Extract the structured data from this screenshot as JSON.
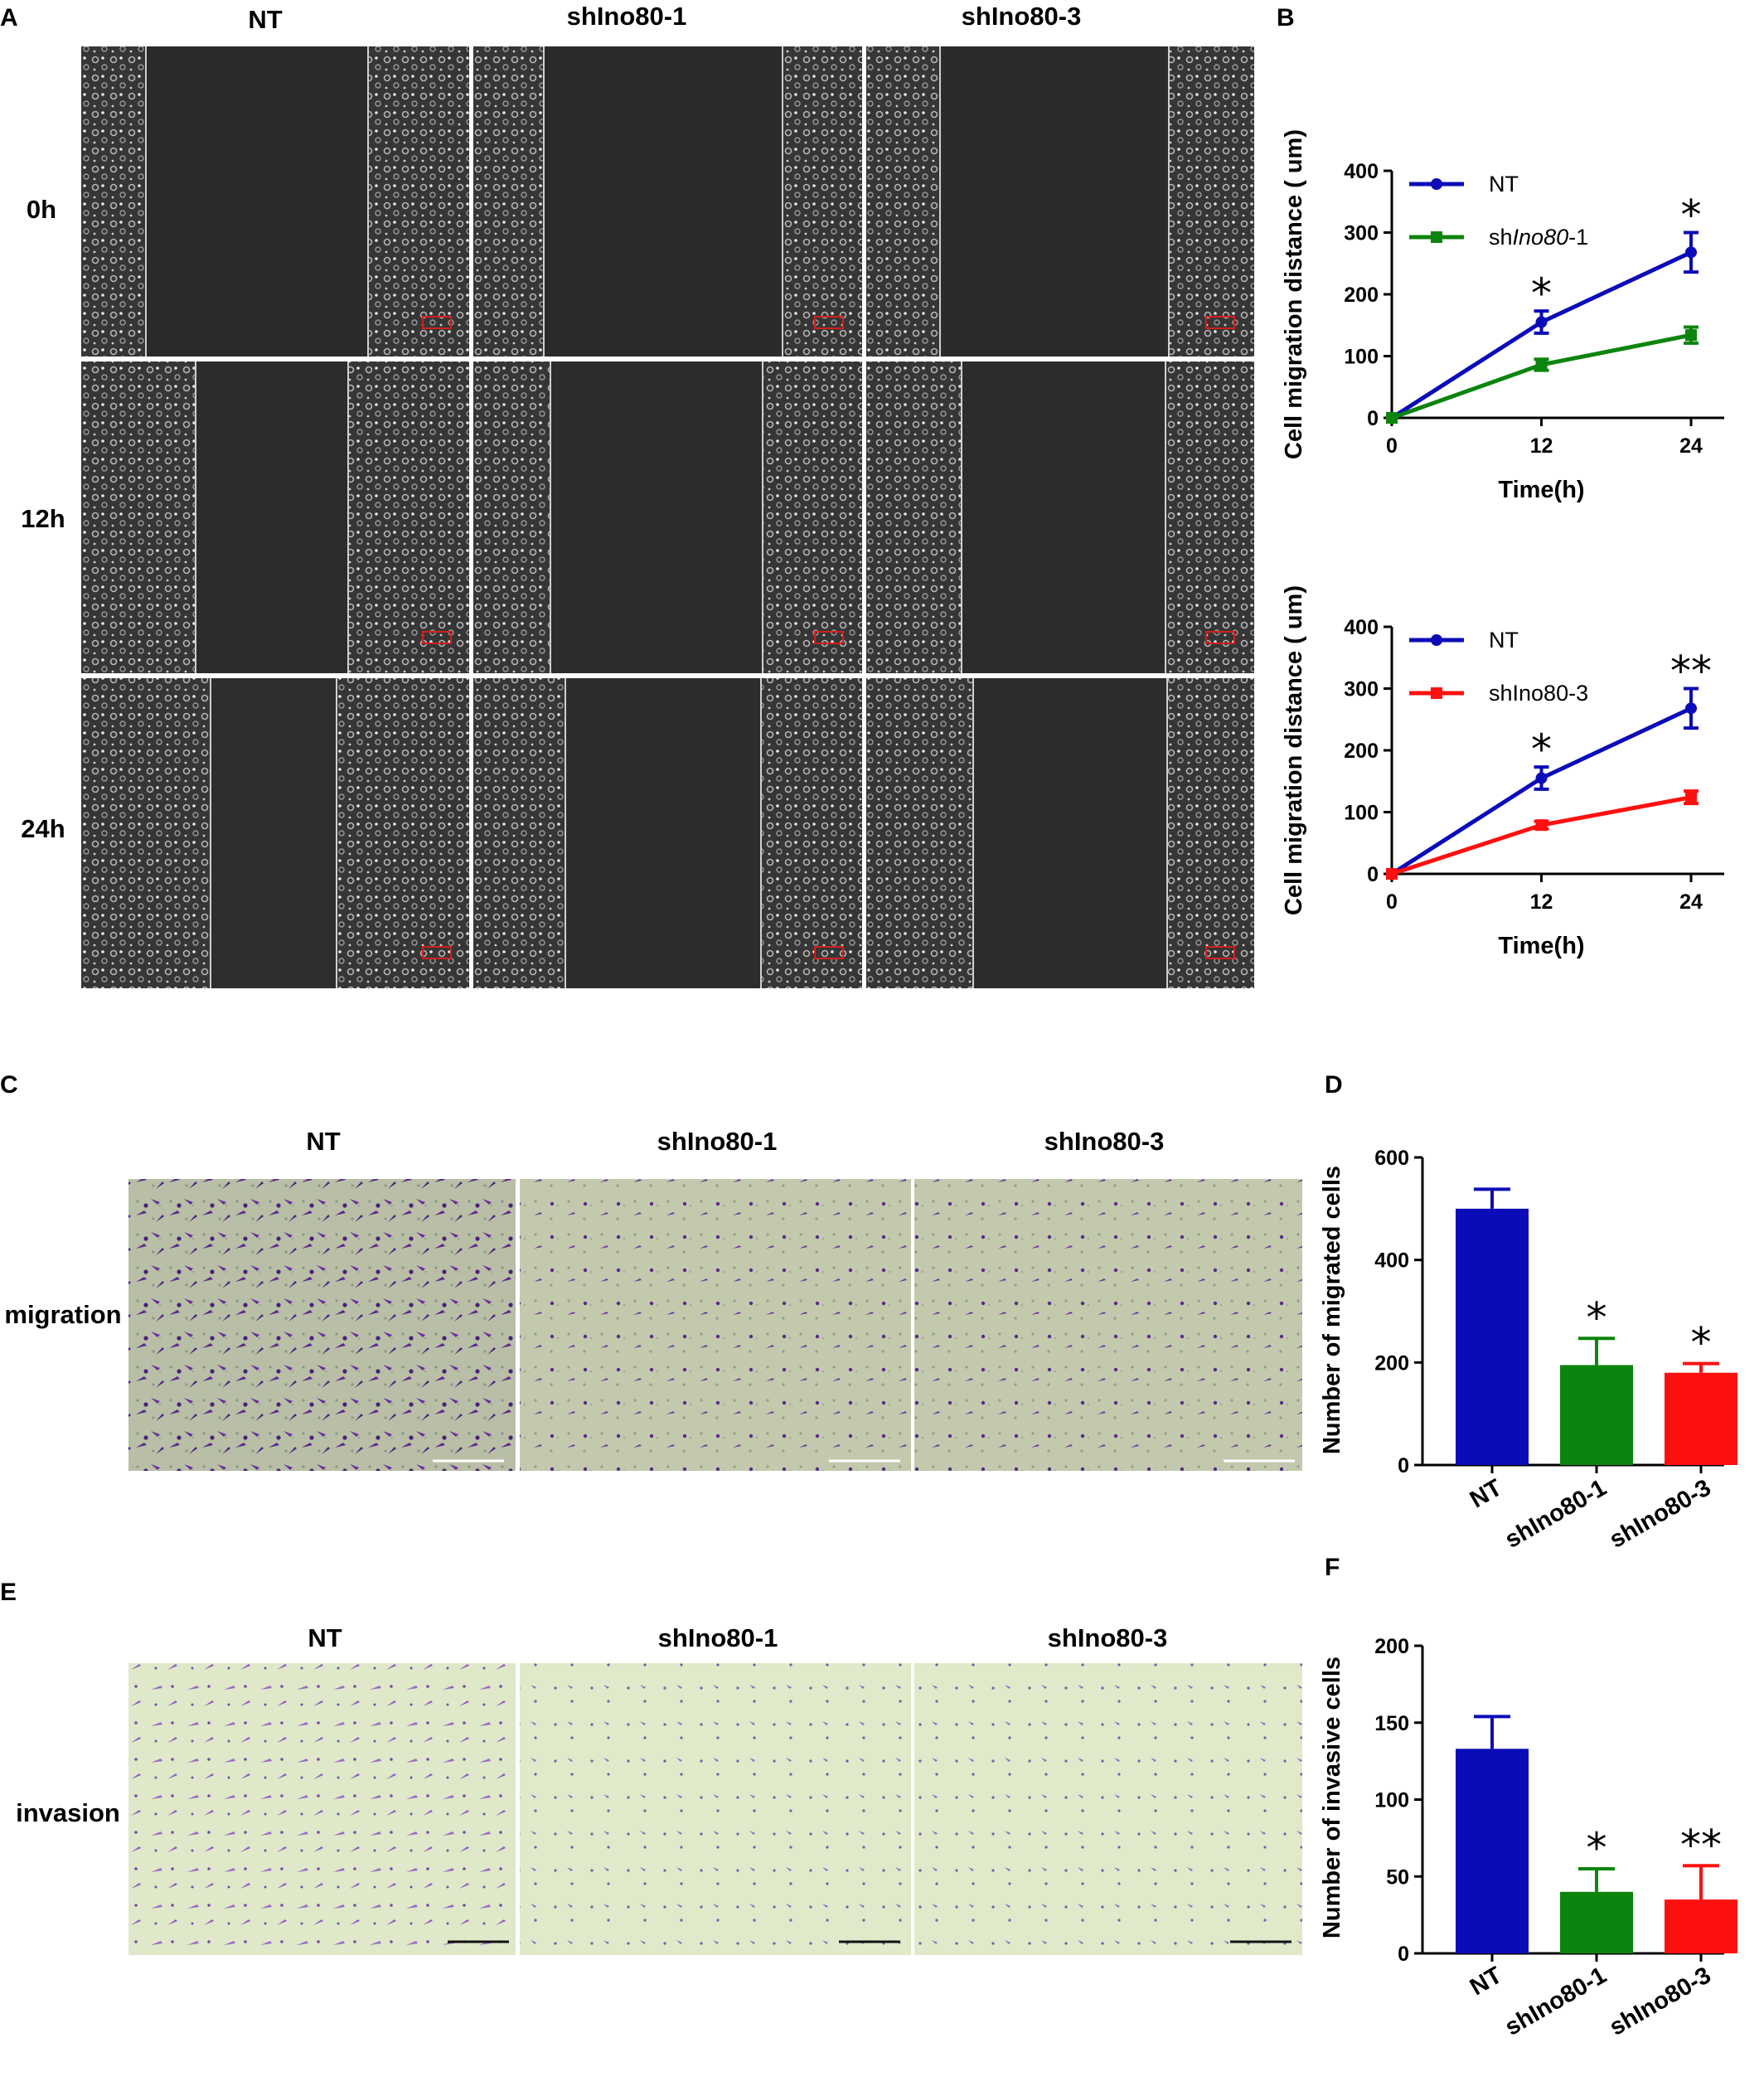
{
  "panels": {
    "a": {
      "letter": "A",
      "cols": [
        "NT",
        "shIno80-1",
        "shIno80-3"
      ],
      "rows": [
        "0h",
        "12h",
        "24h"
      ],
      "scale": "100 um"
    },
    "b": {
      "letter": "B"
    },
    "c": {
      "letter": "C",
      "cols": [
        "NT",
        "shIno80-1",
        "shIno80-3"
      ],
      "row": "migration"
    },
    "d": {
      "letter": "D"
    },
    "e": {
      "letter": "E",
      "cols": [
        "NT",
        "shIno80-1",
        "shIno80-3"
      ],
      "row": "invasion"
    },
    "f": {
      "letter": "F"
    }
  },
  "colors": {
    "nt": "#0b0bb8",
    "sh1": "#0d840d",
    "sh3": "#ff1010"
  },
  "chart_data": [
    {
      "id": "B1",
      "type": "line",
      "x": [
        0,
        12,
        24
      ],
      "xlabel": "Time(h)",
      "ylabel": "Cell migration distance ( um)",
      "ylim": [
        0,
        400
      ],
      "yticks": [
        0,
        100,
        200,
        300,
        400
      ],
      "xticks": [
        0,
        12,
        24
      ],
      "legend": "top-left",
      "series": [
        {
          "name": "NT",
          "values": [
            0,
            155,
            268
          ],
          "errors": [
            0,
            18,
            32
          ],
          "color": "#0b0bb8"
        },
        {
          "name": "shIno80-1",
          "values": [
            0,
            86,
            134
          ],
          "errors": [
            0,
            9,
            13
          ],
          "color": "#0d840d"
        }
      ],
      "annotations": [
        {
          "x": 12,
          "text": "*"
        },
        {
          "x": 24,
          "text": "*"
        }
      ]
    },
    {
      "id": "B2",
      "type": "line",
      "x": [
        0,
        12,
        24
      ],
      "xlabel": "Time(h)",
      "ylabel": "Cell migration distance ( um)",
      "ylim": [
        0,
        400
      ],
      "yticks": [
        0,
        100,
        200,
        300,
        400
      ],
      "xticks": [
        0,
        12,
        24
      ],
      "legend": "top-left",
      "series": [
        {
          "name": "NT",
          "values": [
            0,
            155,
            268
          ],
          "errors": [
            0,
            18,
            32
          ],
          "color": "#0b0bb8"
        },
        {
          "name": "shIno80-3",
          "values": [
            0,
            79,
            124
          ],
          "errors": [
            0,
            6,
            10
          ],
          "color": "#ff1010"
        }
      ],
      "annotations": [
        {
          "x": 12,
          "text": "*"
        },
        {
          "x": 24,
          "text": "**"
        }
      ]
    },
    {
      "id": "D",
      "type": "bar",
      "categories": [
        "NT",
        "shIno80-1",
        "shIno80-3"
      ],
      "values": [
        500,
        195,
        180
      ],
      "errors": [
        38,
        52,
        18
      ],
      "colors": [
        "#0b0bb8",
        "#0d840d",
        "#ff1010"
      ],
      "ylabel": "Number of migrated cells",
      "ylim": [
        0,
        600
      ],
      "yticks": [
        0,
        200,
        400,
        600
      ],
      "annotations": [
        "",
        "*",
        "*"
      ]
    },
    {
      "id": "F",
      "type": "bar",
      "categories": [
        "NT",
        "shIno80-1",
        "shIno80-3"
      ],
      "values": [
        133,
        40,
        35
      ],
      "errors": [
        21,
        15,
        22
      ],
      "colors": [
        "#0b0bb8",
        "#0d840d",
        "#ff1010"
      ],
      "ylabel": "Number of invasive cells",
      "ylim": [
        0,
        200
      ],
      "yticks": [
        0,
        50,
        100,
        150,
        200
      ],
      "annotations": [
        "",
        "*",
        "**"
      ]
    }
  ]
}
